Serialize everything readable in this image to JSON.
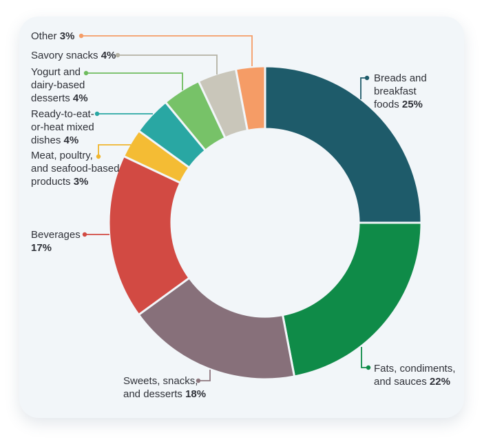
{
  "chart_data": {
    "type": "pie",
    "subtype": "donut",
    "title": "",
    "unit": "%",
    "legend_position": "callout-labels",
    "categories": [
      "Breads and breakfast foods",
      "Fats, condiments, and sauces",
      "Sweets, snacks, and desserts",
      "Beverages",
      "Meat, poultry, and seafood-based products",
      "Ready-to-eat-or-heat mixed dishes",
      "Yogurt and dairy-based desserts",
      "Savory snacks",
      "Other"
    ],
    "values": [
      25,
      22,
      18,
      17,
      3,
      4,
      4,
      4,
      3
    ],
    "slices": [
      {
        "id": "breads",
        "lines": [
          "Breads and",
          "breakfast",
          "foods 25%"
        ],
        "pct": "25%",
        "value": 25,
        "color": "#1e5b6a",
        "line_color": "#1e5b6a"
      },
      {
        "id": "fats",
        "lines": [
          "Fats, condiments,",
          "and sauces 22%"
        ],
        "pct": "22%",
        "value": 22,
        "color": "#0f8b48",
        "line_color": "#0f8b48"
      },
      {
        "id": "sweets",
        "lines": [
          "Sweets, snacks,",
          "and desserts 18%"
        ],
        "pct": "18%",
        "value": 18,
        "color": "#87707a",
        "line_color": "#8d767d"
      },
      {
        "id": "beverages",
        "lines": [
          "Beverages",
          "17%"
        ],
        "pct": "17%",
        "value": 17,
        "color": "#d24a43",
        "line_color": "#d24a43"
      },
      {
        "id": "meat",
        "lines": [
          "Meat, poultry,",
          "and seafood-based",
          "products 3%"
        ],
        "pct": "3%",
        "value": 3,
        "color": "#f4bc34",
        "line_color": "#f0b52d"
      },
      {
        "id": "ready",
        "lines": [
          "Ready-to-eat-",
          "or-heat mixed",
          "dishes 4%"
        ],
        "pct": "4%",
        "value": 4,
        "color": "#29a7a3",
        "line_color": "#29a7a3"
      },
      {
        "id": "yogurt",
        "lines": [
          "Yogurt and",
          "dairy-based",
          "desserts 4%"
        ],
        "pct": "4%",
        "value": 4,
        "color": "#77c268",
        "line_color": "#6fbc5f"
      },
      {
        "id": "savory",
        "lines": [
          "Savory snacks 4%"
        ],
        "pct": "4%",
        "value": 4,
        "color": "#c9c6ba",
        "line_color": "#b4b2a4"
      },
      {
        "id": "other",
        "lines": [
          "Other 3%"
        ],
        "pct": "3%",
        "value": 3,
        "color": "#f59c66",
        "line_color": "#f59c66"
      }
    ]
  },
  "colors": {
    "card_bg": "#f2f6f9",
    "page_bg": "#ffffff",
    "text": "#2f3138"
  }
}
